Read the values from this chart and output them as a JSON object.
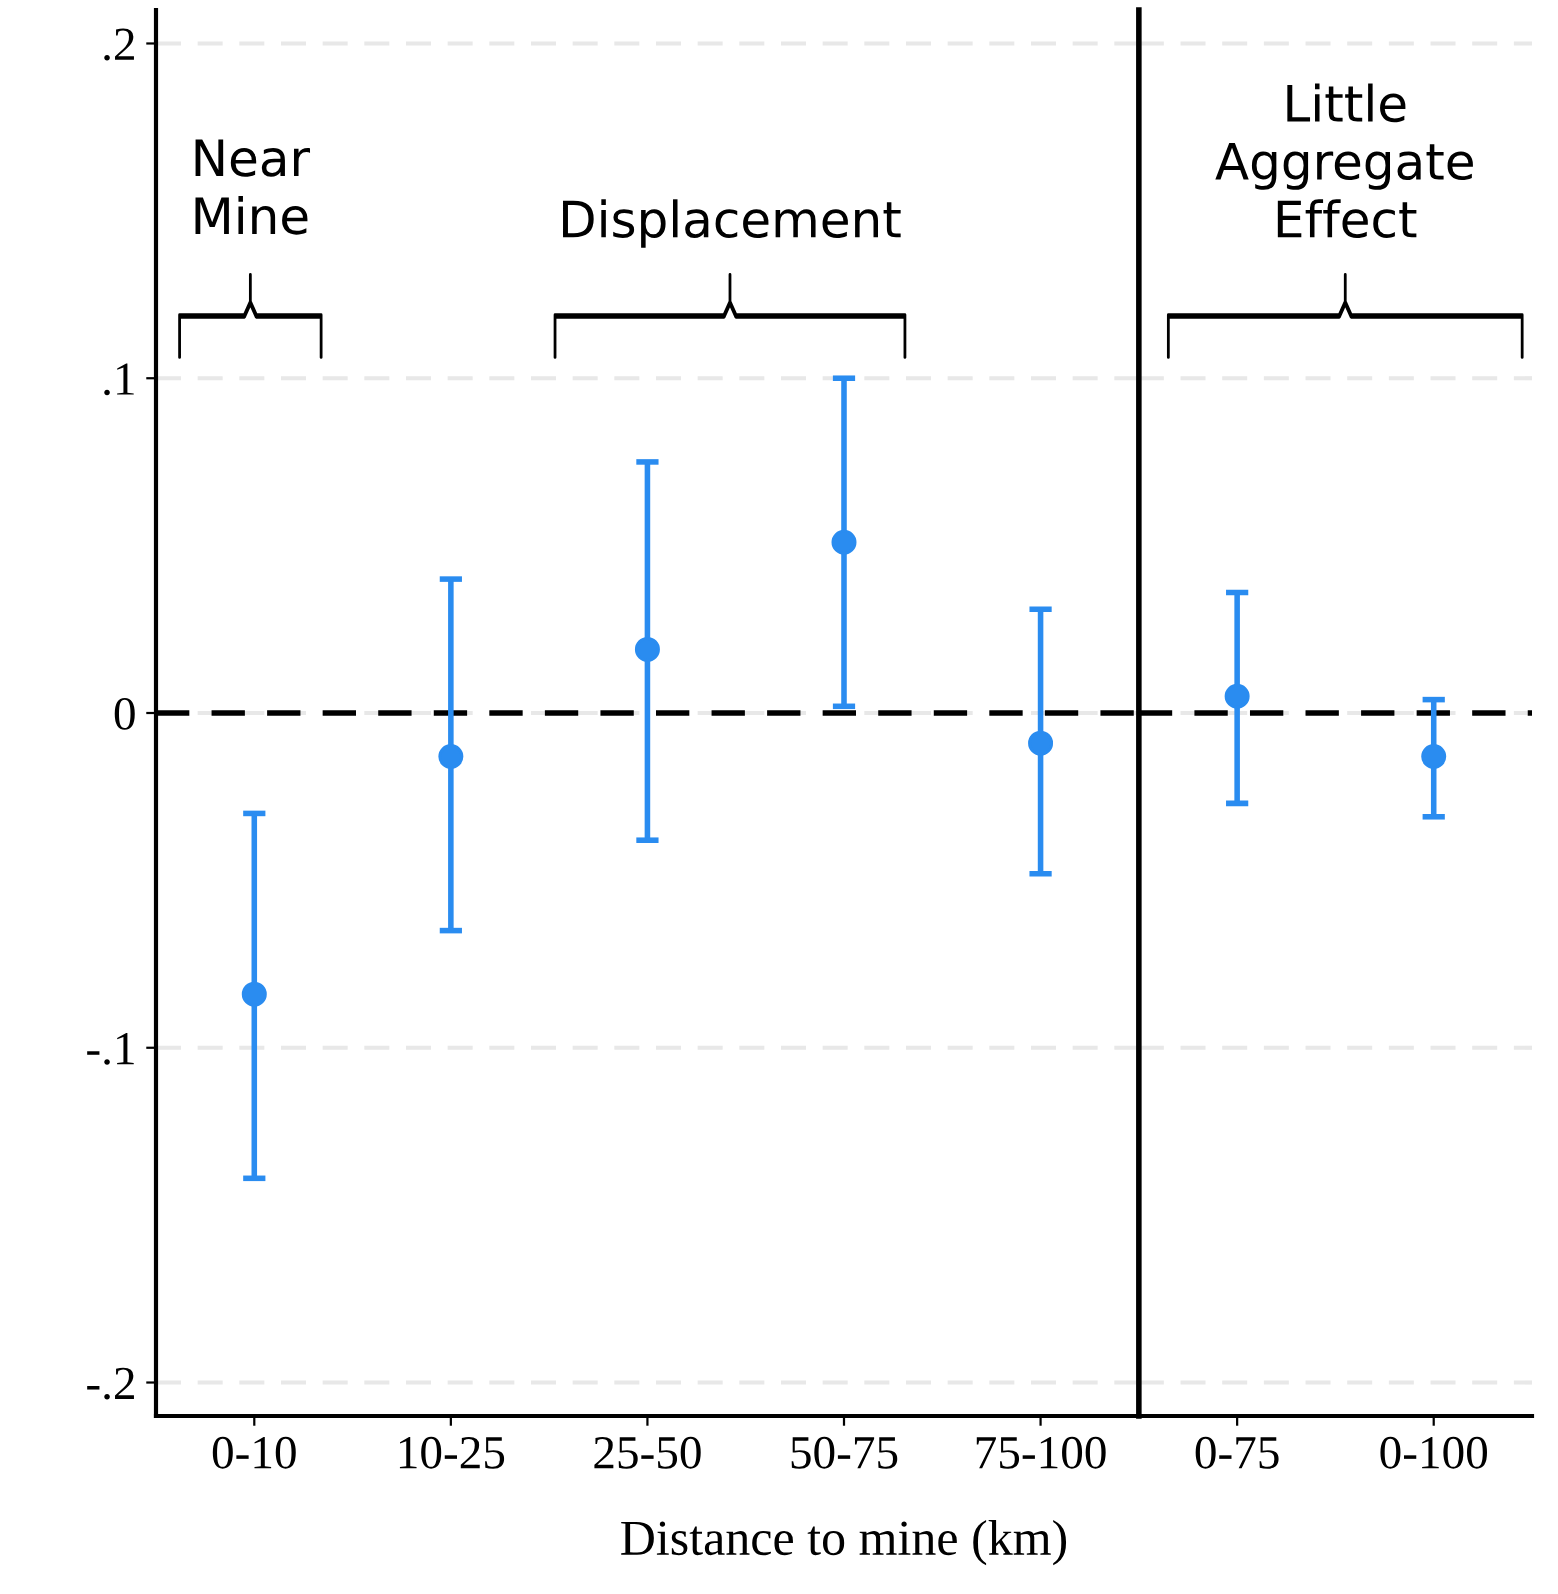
{
  "chart_data": [
    {
      "type": "scatter",
      "xlabel": "Distance to mine (km)",
      "categories": [
        "0-10",
        "10-25",
        "25-50",
        "50-75",
        "75-100"
      ],
      "series": [
        {
          "color": "#2a8cf0",
          "values": [
            -0.084,
            -0.013,
            0.019,
            0.051,
            -0.009
          ],
          "errors": [
            [
              -0.139,
              -0.03
            ],
            [
              -0.065,
              0.04
            ],
            [
              -0.038,
              0.075
            ],
            [
              0.002,
              0.1
            ],
            [
              -0.048,
              0.031
            ]
          ]
        }
      ],
      "ylim": [
        -0.21,
        0.21
      ],
      "yticks": [
        {
          "value": -0.2,
          "label": "-.2"
        },
        {
          "value": -0.1,
          "label": "-.1"
        },
        {
          "value": 0,
          "label": "0"
        },
        {
          "value": 0.1,
          "label": ".1"
        },
        {
          "value": 0.2,
          "label": ".2"
        }
      ],
      "grid": "y",
      "marker": "circle",
      "ref_lines": [
        {
          "axis": "y",
          "value": 0,
          "color": "#000000",
          "line_style": "dashed"
        }
      ],
      "annotations": [
        "Near\nMine",
        "Displacement"
      ]
    },
    {
      "type": "scatter",
      "tick_labels": "x",
      "categories": [
        "0-75",
        "0-100"
      ],
      "series": [
        {
          "color": "#2a8cf0",
          "values": [
            0.005,
            -0.013
          ],
          "errors": [
            [
              -0.027,
              0.036
            ],
            [
              -0.031,
              0.004
            ]
          ]
        }
      ],
      "ylim": [
        -0.21,
        0.21
      ],
      "yticks": [
        {
          "value": -0.2,
          "label": null
        },
        {
          "value": -0.1,
          "label": null
        },
        {
          "value": 0,
          "label": null
        },
        {
          "value": 0.1,
          "label": null
        },
        {
          "value": 0.2,
          "label": null
        }
      ],
      "grid": "y",
      "marker": "circle",
      "ref_lines": [
        {
          "axis": "y",
          "value": 0,
          "color": "#000000",
          "line_style": "dashed"
        }
      ],
      "annotations": [
        "Little\nAggregate\nEffect"
      ]
    }
  ]
}
